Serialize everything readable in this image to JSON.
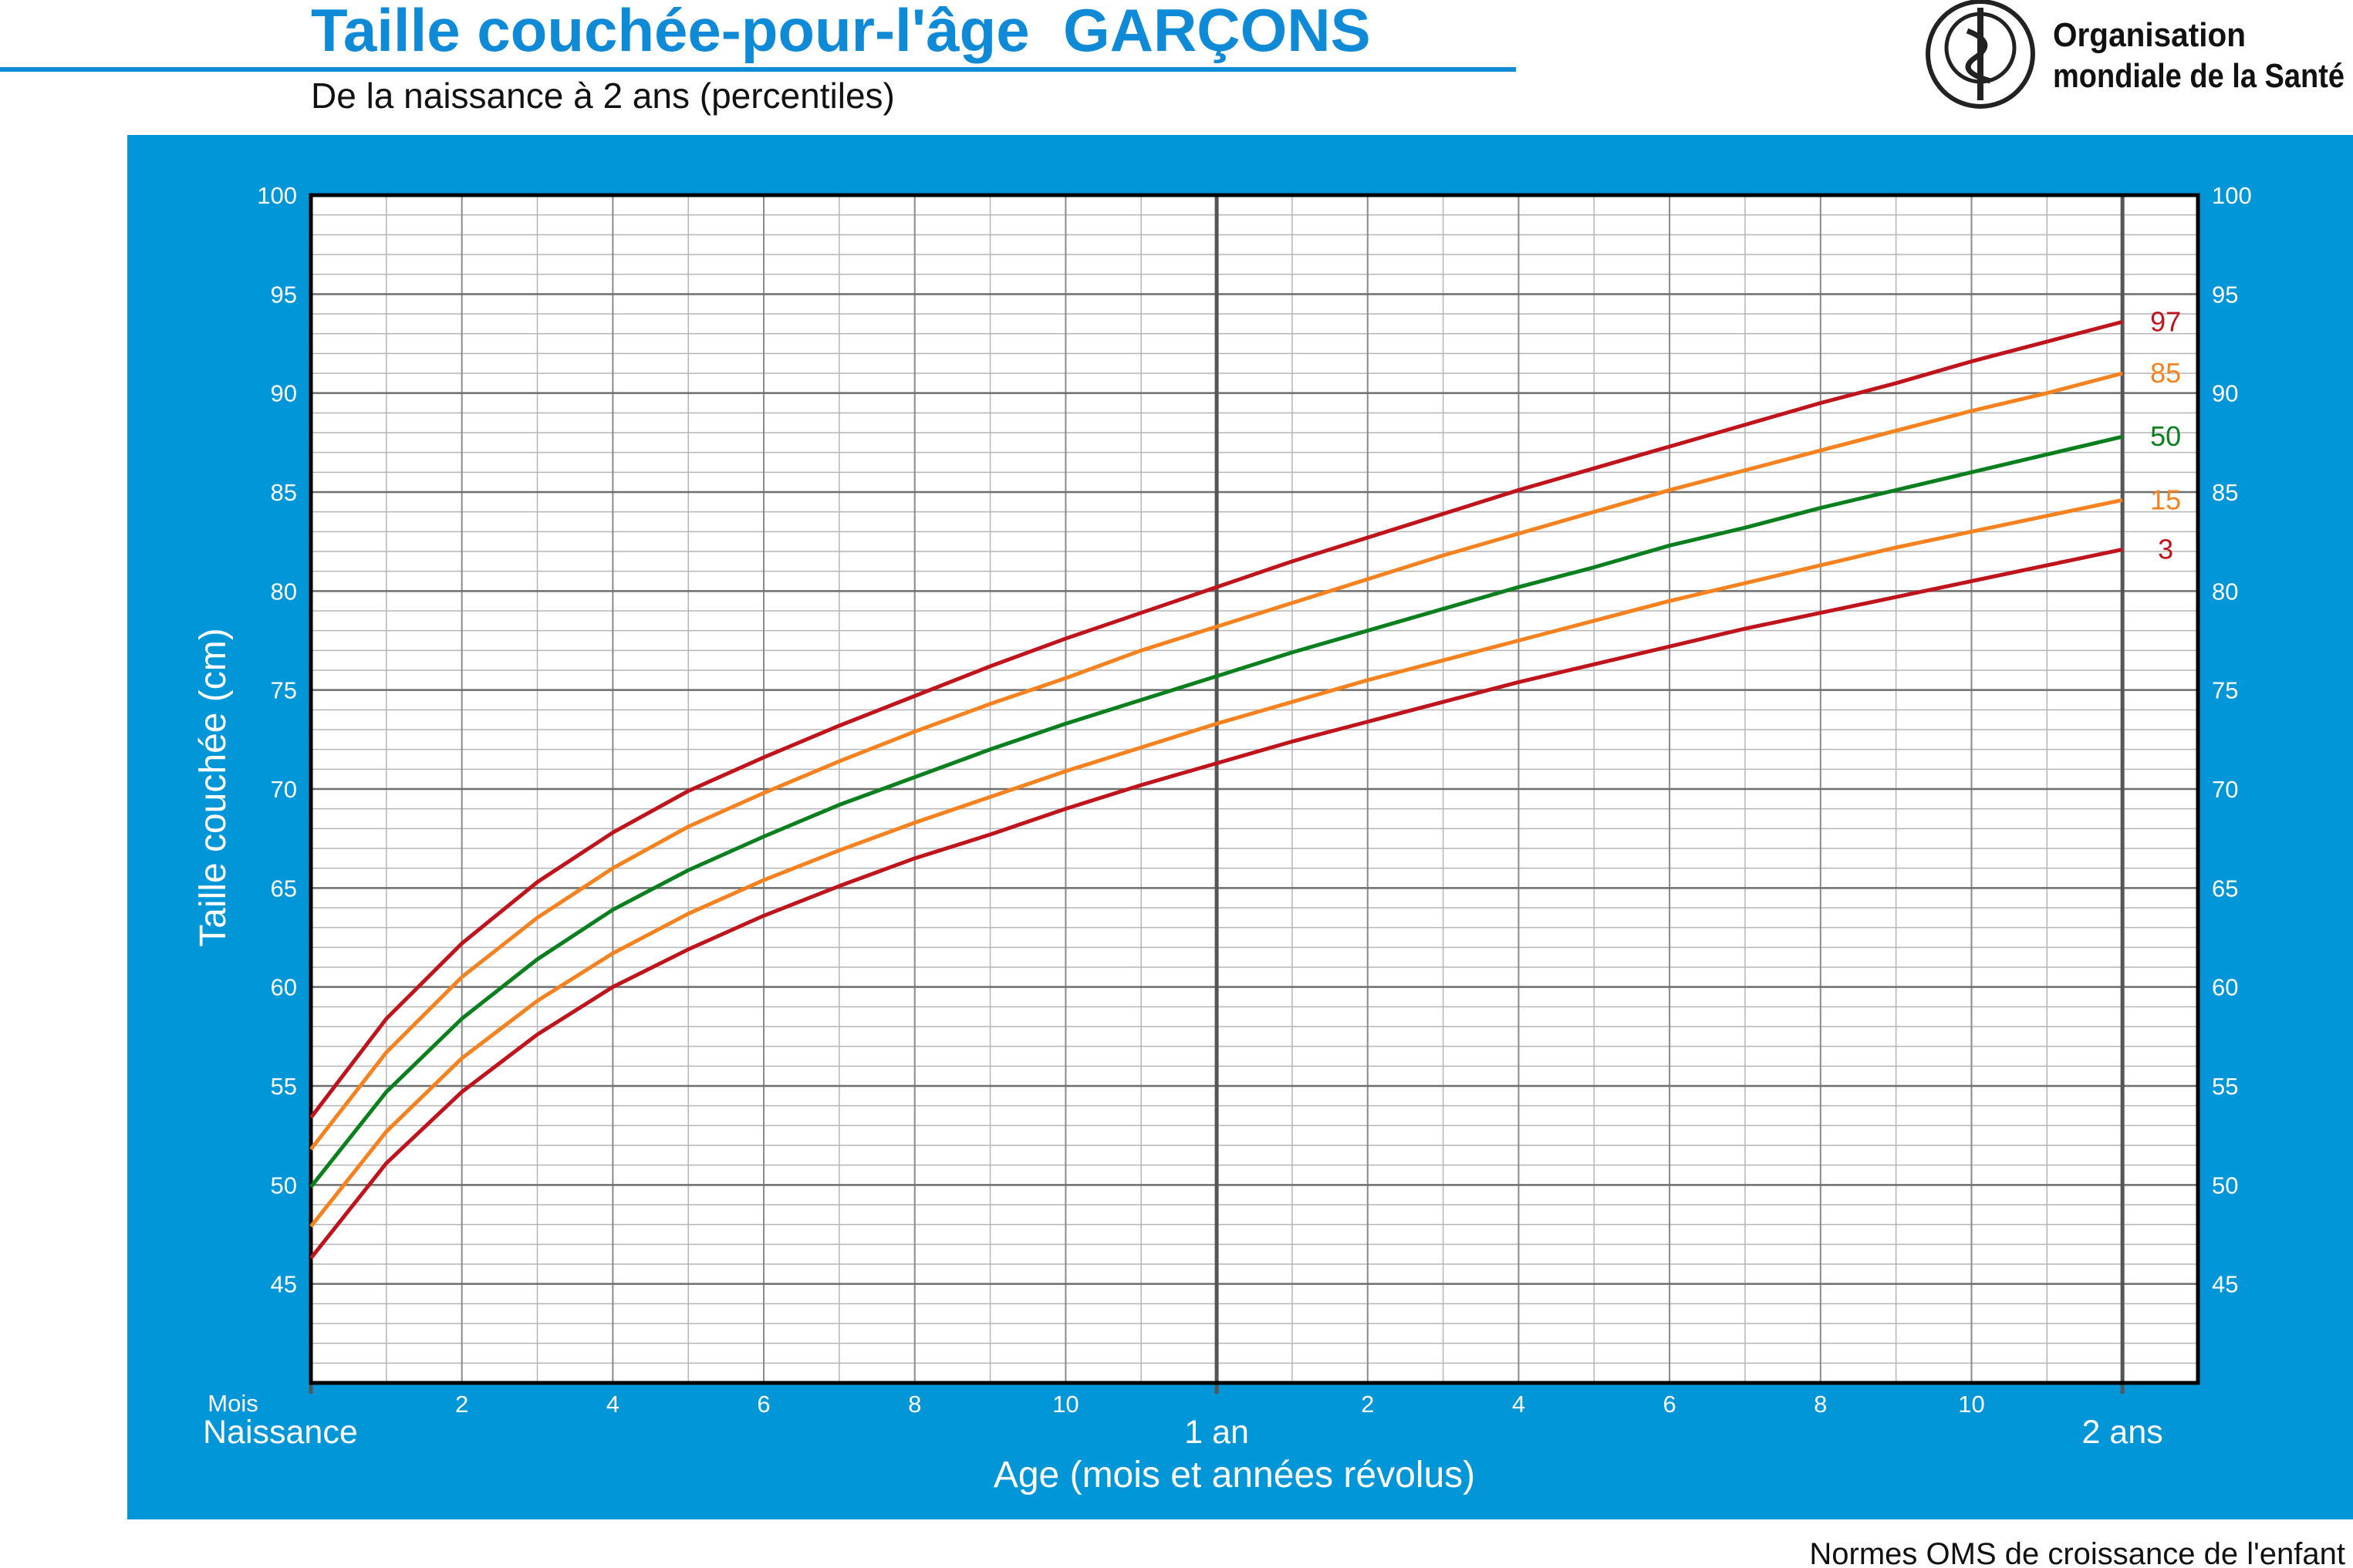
{
  "chart_data": {
    "type": "line",
    "title": "Taille couchée-pour-l'âge  GARÇONS",
    "subtitle": "De la naissance à 2 ans (percentiles)",
    "y_label": "Taille couchée (cm)",
    "x_label": "Age (mois et années révolus)",
    "x_unit_label": "Mois",
    "footer": "Normes OMS de croissance de l'enfant",
    "x": [
      0,
      1,
      2,
      3,
      4,
      5,
      6,
      7,
      8,
      9,
      10,
      11,
      12,
      13,
      14,
      15,
      16,
      17,
      18,
      19,
      20,
      21,
      22,
      23,
      24
    ],
    "series": [
      {
        "name": "3",
        "color": "#c0141c",
        "values": [
          46.3,
          51.1,
          54.7,
          57.6,
          60.0,
          61.9,
          63.6,
          65.1,
          66.5,
          67.7,
          69.0,
          70.2,
          71.3,
          72.4,
          73.4,
          74.4,
          75.4,
          76.3,
          77.2,
          78.1,
          78.9,
          79.7,
          80.5,
          81.3,
          82.1
        ]
      },
      {
        "name": "15",
        "color": "#f5821f",
        "values": [
          47.9,
          52.7,
          56.4,
          59.3,
          61.7,
          63.7,
          65.4,
          66.9,
          68.3,
          69.6,
          70.9,
          72.1,
          73.3,
          74.4,
          75.5,
          76.5,
          77.5,
          78.5,
          79.5,
          80.4,
          81.3,
          82.2,
          83.0,
          83.8,
          84.6
        ]
      },
      {
        "name": "50",
        "color": "#0a7f1e",
        "values": [
          49.9,
          54.7,
          58.4,
          61.4,
          63.9,
          65.9,
          67.6,
          69.2,
          70.6,
          72.0,
          73.3,
          74.5,
          75.7,
          76.9,
          78.0,
          79.1,
          80.2,
          81.2,
          82.3,
          83.2,
          84.2,
          85.1,
          86.0,
          86.9,
          87.8
        ]
      },
      {
        "name": "85",
        "color": "#f5821f",
        "values": [
          51.8,
          56.7,
          60.5,
          63.5,
          66.0,
          68.1,
          69.8,
          71.4,
          72.9,
          74.3,
          75.6,
          77.0,
          78.2,
          79.4,
          80.6,
          81.8,
          82.9,
          84.0,
          85.1,
          86.1,
          87.1,
          88.1,
          89.1,
          90.0,
          91.0
        ]
      },
      {
        "name": "97",
        "color": "#c0141c",
        "values": [
          53.4,
          58.4,
          62.2,
          65.3,
          67.8,
          69.9,
          71.6,
          73.2,
          74.7,
          76.2,
          77.6,
          78.9,
          80.2,
          81.5,
          82.7,
          83.9,
          85.1,
          86.2,
          87.3,
          88.4,
          89.5,
          90.5,
          91.6,
          92.6,
          93.6
        ]
      }
    ],
    "xlim": [
      0,
      25
    ],
    "ylim": [
      40,
      100
    ],
    "yticks": [
      45,
      50,
      55,
      60,
      65,
      70,
      75,
      80,
      85,
      90,
      95,
      100
    ],
    "xticks": [
      2,
      4,
      6,
      8,
      10,
      {
        "value": 14,
        "label": "2"
      },
      {
        "value": 16,
        "label": "4"
      },
      {
        "value": 18,
        "label": "6"
      },
      {
        "value": 20,
        "label": "8"
      },
      {
        "value": 22,
        "label": "10"
      }
    ],
    "xticks_major": [
      {
        "value": 0,
        "label": "Naissance"
      },
      {
        "value": 12,
        "label": "1 an"
      },
      {
        "value": 24,
        "label": "2 ans"
      }
    ],
    "grid": true,
    "minor_grid": {
      "x": 1,
      "y": 1
    }
  },
  "logo": {
    "lines": [
      "Organisation",
      "mondiale de la Santé"
    ]
  }
}
